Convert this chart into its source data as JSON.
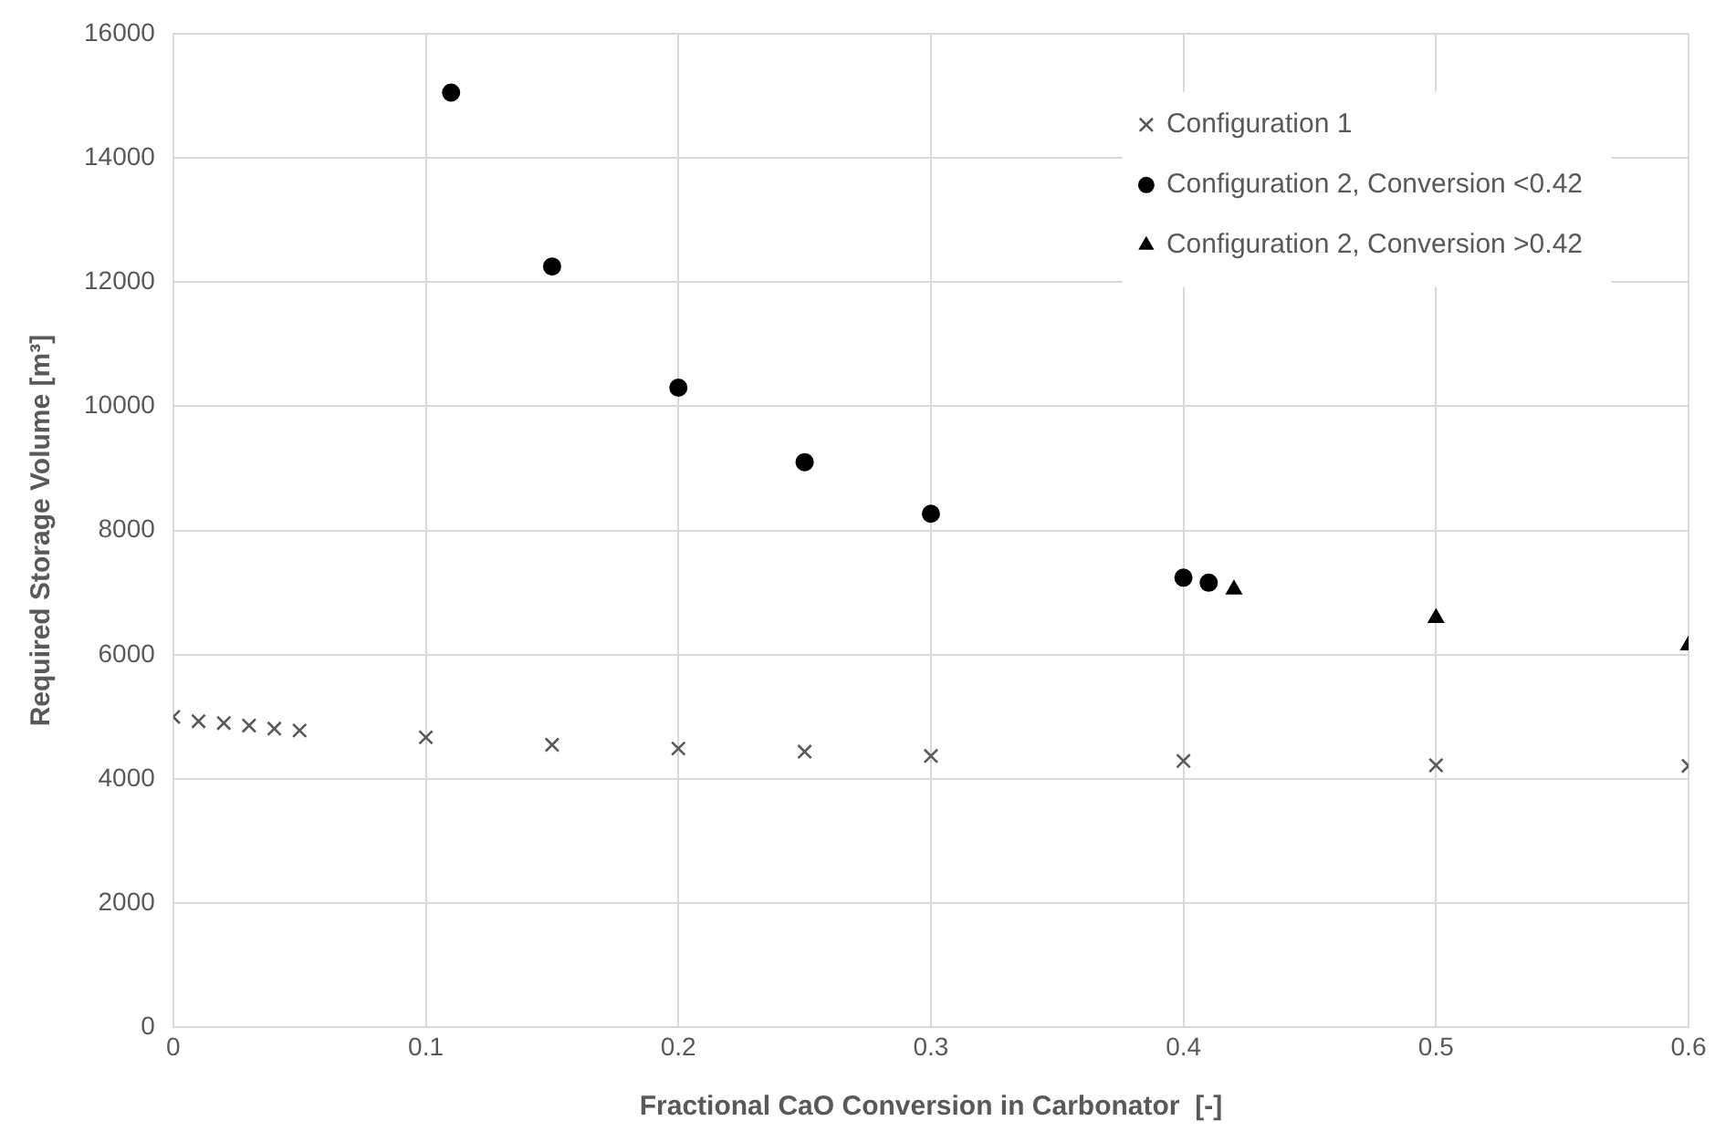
{
  "chart_data": {
    "type": "scatter",
    "xlabel": "Fractional CaO Conversion in Carbonator  [-]",
    "ylabel": "Required Storage Volume [m³]",
    "xlim": [
      0,
      0.6
    ],
    "xticks": [
      0,
      0.1,
      0.2,
      0.3,
      0.4,
      0.5,
      0.6
    ],
    "ylim": [
      0,
      16000
    ],
    "yticks": [
      0,
      2000,
      4000,
      6000,
      8000,
      10000,
      12000,
      14000,
      16000
    ],
    "grid": true,
    "legend": "top right",
    "series": [
      {
        "name": "Configuration 1",
        "color": "#595959",
        "marker": "cross",
        "x": [
          0,
          0.01,
          0.02,
          0.03,
          0.04,
          0.05,
          0.1,
          0.15,
          0.2,
          0.25,
          0.3,
          0.4,
          0.5,
          0.6
        ],
        "values": [
          5000,
          4930,
          4900,
          4860,
          4810,
          4780,
          4670,
          4550,
          4490,
          4440,
          4370,
          4290,
          4220,
          4210
        ]
      },
      {
        "name": "Configuration 2, Conversion <0.42",
        "color": "#000000",
        "marker": "circle",
        "x": [
          0.11,
          0.15,
          0.2,
          0.25,
          0.3,
          0.4,
          0.41
        ],
        "values": [
          15050,
          12250,
          10300,
          9100,
          8270,
          7240,
          7160
        ]
      },
      {
        "name": "Configuration 2, Conversion >0.42",
        "color": "#000000",
        "marker": "triangle",
        "x": [
          0.42,
          0.5,
          0.6
        ],
        "values": [
          7050,
          6590,
          6150
        ]
      }
    ]
  }
}
